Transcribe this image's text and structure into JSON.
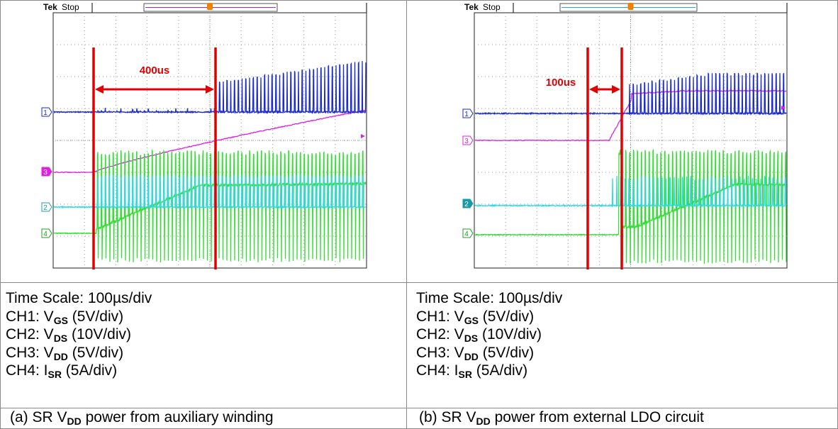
{
  "colors": {
    "ch1": "#1a2bd6",
    "ch2": "#2fd9e6",
    "ch3": "#e020e0",
    "ch4": "#33dd33",
    "marker": "#e00000",
    "grid": "#9a9a9a"
  },
  "scopes": [
    {
      "header_brand": "Tek",
      "header_status": "Stop",
      "trigger_glyph": "T",
      "channel_markers": [
        "1",
        "3",
        "2",
        "4"
      ],
      "annotation": "400us",
      "labels": {
        "time_scale": "Time Scale: 100µs/div",
        "ch1_prefix": "CH1: V",
        "ch1_sub": "GS",
        "ch1_suffix": " (5V/div)",
        "ch2_prefix": "CH2: V",
        "ch2_sub": "DS",
        "ch2_suffix": " (10V/div)",
        "ch3_prefix": "CH3: V",
        "ch3_sub": "DD",
        "ch3_suffix": " (5V/div)",
        "ch4_prefix": "CH4: I",
        "ch4_sub": "SR",
        "ch4_suffix": " (5A/div)"
      },
      "caption_prefix": "(a) SR V",
      "caption_sub": "DD",
      "caption_suffix": " power from auxiliary winding"
    },
    {
      "header_brand": "Tek",
      "header_status": "Stop",
      "trigger_glyph": "T",
      "channel_markers": [
        "1",
        "3",
        "2",
        "4"
      ],
      "annotation": "100us",
      "labels": {
        "time_scale": "Time Scale: 100µs/div",
        "ch1_prefix": "CH1: V",
        "ch1_sub": "GS",
        "ch1_suffix": " (5V/div)",
        "ch2_prefix": "CH2: V",
        "ch2_sub": "DS",
        "ch2_suffix": " (10V/div)",
        "ch3_prefix": "CH3: V",
        "ch3_sub": "DD",
        "ch3_suffix": " (5V/div)",
        "ch4_prefix": "CH4: I",
        "ch4_sub": "SR",
        "ch4_suffix": " (5A/div)"
      },
      "caption_prefix": "(b) SR V",
      "caption_sub": "DD",
      "caption_suffix": " power from external LDO circuit"
    }
  ],
  "chart_data": [
    {
      "type": "line",
      "title": "",
      "x_unit": "µs",
      "x_per_div": 100,
      "x_divisions": 10,
      "marker_interval_us": 400,
      "series": [
        {
          "name": "CH1: VGS (5V/div)"
        },
        {
          "name": "CH2: VDS (10V/div)"
        },
        {
          "name": "CH3: VDD (5V/div)"
        },
        {
          "name": "CH4: ISR (5A/div)"
        }
      ]
    },
    {
      "type": "line",
      "title": "",
      "x_unit": "µs",
      "x_per_div": 100,
      "x_divisions": 10,
      "marker_interval_us": 100,
      "series": [
        {
          "name": "CH1: VGS (5V/div)"
        },
        {
          "name": "CH2: VDS (10V/div)"
        },
        {
          "name": "CH3: VDD (5V/div)"
        },
        {
          "name": "CH4: ISR (5A/div)"
        }
      ]
    }
  ]
}
